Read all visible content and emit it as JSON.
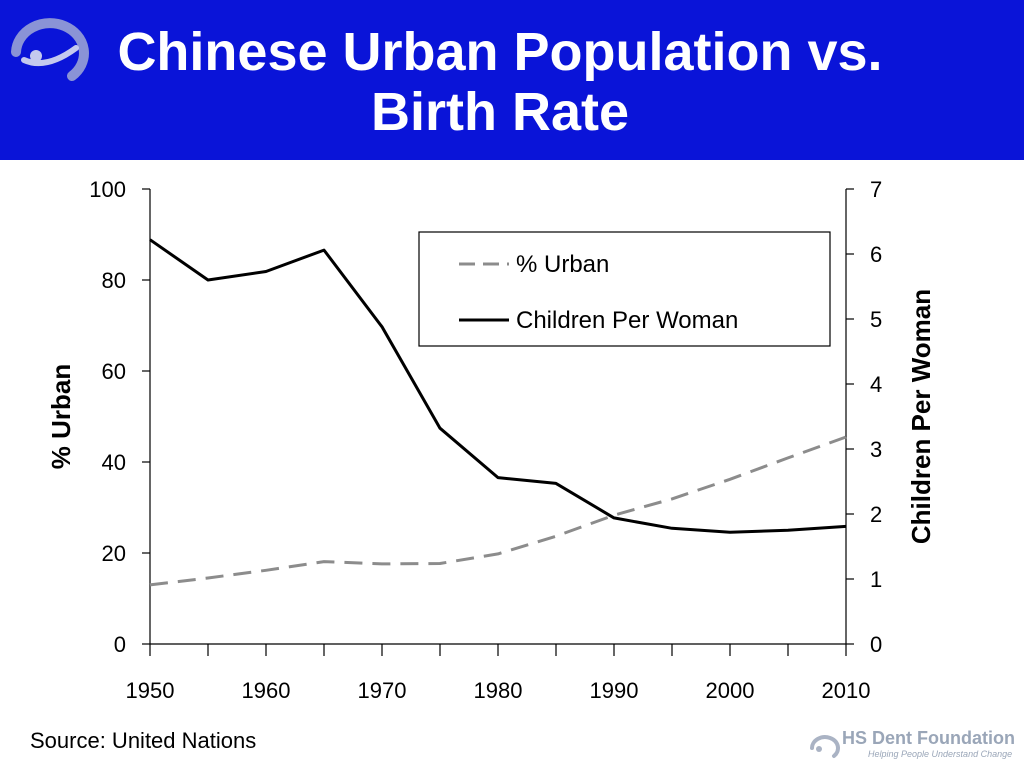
{
  "slide": {
    "title_line1": "Chinese Urban Population vs.",
    "title_line2": "Birth Rate",
    "source": "Source: United Nations",
    "footer_brand": "HS Dent Foundation",
    "footer_tagline": "Helping People Understand Change"
  },
  "colors": {
    "banner": "#0a14d8",
    "urban_line": "#8c8c8c",
    "children_line": "#000000"
  },
  "chart_data": {
    "type": "line",
    "title": "",
    "x": [
      1950,
      1955,
      1960,
      1965,
      1970,
      1975,
      1980,
      1985,
      1990,
      1995,
      2000,
      2005,
      2010
    ],
    "xticks": [
      "1950",
      "1960",
      "1970",
      "1980",
      "1990",
      "2000",
      "2010"
    ],
    "xlim": [
      1950,
      2010
    ],
    "left_axis": {
      "label": "% Urban",
      "ylim": [
        0,
        100
      ],
      "ticks": [
        "0",
        "20",
        "40",
        "60",
        "80",
        "100"
      ]
    },
    "right_axis": {
      "label": "Children Per Woman",
      "ylim": [
        0,
        7
      ],
      "ticks": [
        "0",
        "1",
        "2",
        "3",
        "4",
        "5",
        "6",
        "7"
      ]
    },
    "series": [
      {
        "name": "% Urban",
        "axis": "left",
        "style": "dashed",
        "values": [
          13,
          14.5,
          16.2,
          18.1,
          17.6,
          17.7,
          19.8,
          23.7,
          28.3,
          31.9,
          36.2,
          40.9,
          45.5
        ]
      },
      {
        "name": "Children Per Woman",
        "axis": "right",
        "style": "solid",
        "values": [
          6.22,
          5.6,
          5.73,
          6.06,
          4.88,
          3.32,
          2.56,
          2.47,
          1.94,
          1.78,
          1.72,
          1.75,
          1.81
        ]
      }
    ],
    "legend": {
      "position": "top-right",
      "boxed": true
    },
    "grid": false
  }
}
